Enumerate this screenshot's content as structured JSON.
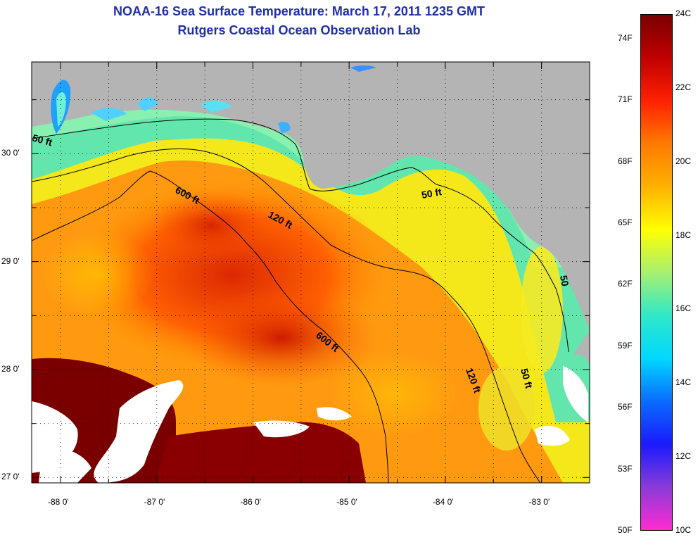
{
  "title": "NOAA-16 Sea Surface Temperature:  March 17, 2011 1235 GMT",
  "subtitle": "Rutgers Coastal Ocean Observation Lab",
  "map": {
    "lon_range": [
      -88.3,
      -82.5
    ],
    "lat_range": [
      26.95,
      30.85
    ],
    "lon_ticks": [
      {
        "value": -88,
        "label": "-88 0'"
      },
      {
        "value": -87,
        "label": "-87 0'"
      },
      {
        "value": -86,
        "label": "-86 0'"
      },
      {
        "value": -85,
        "label": "-85 0'"
      },
      {
        "value": -84,
        "label": "-84 0'"
      },
      {
        "value": -83,
        "label": "-83 0'"
      }
    ],
    "lat_ticks": [
      {
        "value": 30,
        "label": "30 0'"
      },
      {
        "value": 29,
        "label": "29 0'"
      },
      {
        "value": 28,
        "label": "28 0'"
      },
      {
        "value": 27,
        "label": "27 0'"
      }
    ],
    "land_color": "#b4b4b4",
    "cloud_color": "#ffffff",
    "contour_labels": [
      "50 ft",
      "600 ft",
      "120 ft",
      "50 ft",
      "600 ft",
      "120 ft",
      "50 ft",
      "50"
    ]
  },
  "colorbar": {
    "celsius_labels": [
      "24C",
      "22C",
      "20C",
      "18C",
      "16C",
      "14C",
      "12C",
      "10C"
    ],
    "fahrenheit_labels": [
      "74F",
      "71F",
      "68F",
      "65F",
      "62F",
      "59F",
      "56F",
      "53F",
      "50F"
    ],
    "fahrenheit_values": [
      74,
      71,
      68,
      65,
      62,
      59,
      56,
      53,
      50
    ],
    "range_c": [
      10,
      24
    ],
    "stops": [
      "#ff2bd2",
      "#8a3bd6",
      "#1a1aff",
      "#0a6cff",
      "#00d8ff",
      "#2fe8c8",
      "#a8f070",
      "#ffff00",
      "#ffb000",
      "#ff7a00",
      "#ff2000",
      "#c00000",
      "#7a0000"
    ]
  }
}
